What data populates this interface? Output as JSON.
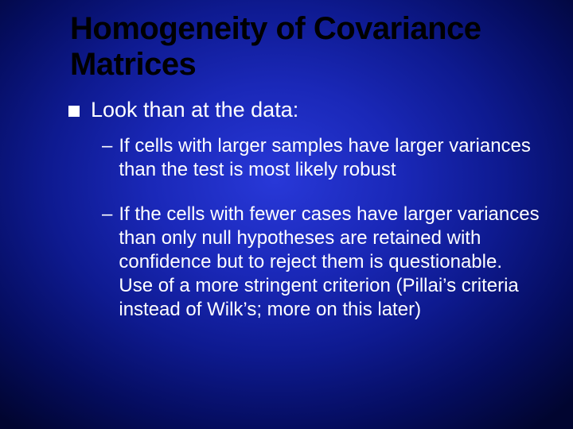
{
  "slide": {
    "background": {
      "gradient_type": "radial",
      "center_color": "#2838d8",
      "mid_color": "#0e1a90",
      "edge_color": "#010530"
    },
    "title": {
      "text": "Homogeneity of Covariance Matrices",
      "color": "#000000",
      "fontsize": 40,
      "weight": 700
    },
    "body_text_color": "#ffffff",
    "level1_fontsize": 27,
    "level2_fontsize": 24,
    "bullet": {
      "type": "square",
      "color": "#ffffff",
      "size": 14
    },
    "dash_char": "–",
    "items": [
      {
        "text": "Look than at the data:",
        "children": [
          {
            "text": "If cells with larger samples have larger variances than the test is most likely robust"
          },
          {
            "text": "If the cells with fewer cases have larger variances than only null hypotheses are retained with confidence but to reject them is questionable.  Use of a more stringent criterion (Pillai’s criteria instead of Wilk’s; more on this later)"
          }
        ]
      }
    ]
  }
}
